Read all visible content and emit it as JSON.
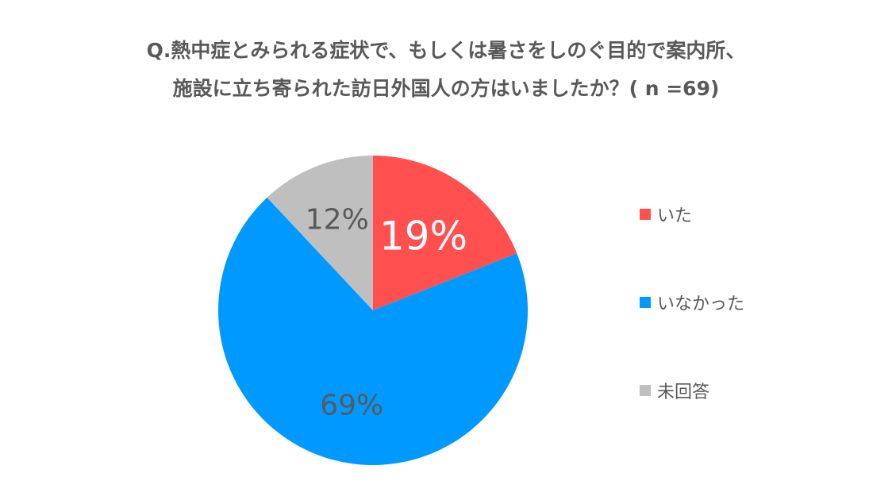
{
  "chart_data": {
    "type": "pie",
    "title_lines": [
      "Q.熱中症とみられる症状で、もしくは暑さをしのぐ目的で案内所、",
      "施設に立ち寄られた訪日外国人の方はいましたか？( n =69)"
    ],
    "slices": [
      {
        "label": "いた",
        "value": 19,
        "display": "19%",
        "color": "#FF5050",
        "text_color": "#FFFFFF",
        "emphasized": true
      },
      {
        "label": "いなかった",
        "value": 69,
        "display": "69%",
        "color": "#0099FF",
        "text_color": "#595959",
        "emphasized": false
      },
      {
        "label": "未回答",
        "value": 12,
        "display": "12%",
        "color": "#BFBFBF",
        "text_color": "#595959",
        "emphasized": false
      }
    ],
    "legend_position": "right",
    "start_angle": "12 o'clock, clockwise"
  }
}
